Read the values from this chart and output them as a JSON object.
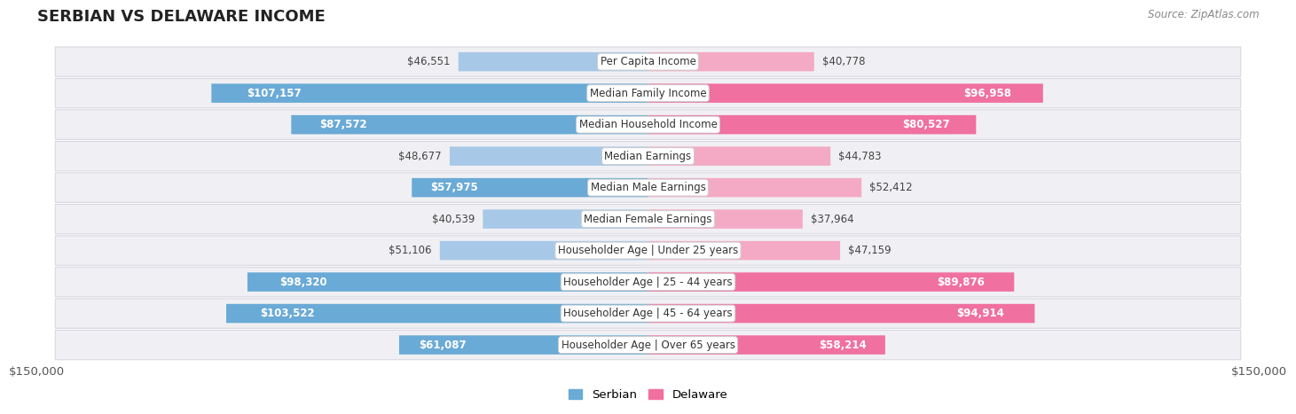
{
  "title": "SERBIAN VS DELAWARE INCOME",
  "source": "Source: ZipAtlas.com",
  "categories": [
    "Per Capita Income",
    "Median Family Income",
    "Median Household Income",
    "Median Earnings",
    "Median Male Earnings",
    "Median Female Earnings",
    "Householder Age | Under 25 years",
    "Householder Age | 25 - 44 years",
    "Householder Age | 45 - 64 years",
    "Householder Age | Over 65 years"
  ],
  "serbian_values": [
    46551,
    107157,
    87572,
    48677,
    57975,
    40539,
    51106,
    98320,
    103522,
    61087
  ],
  "delaware_values": [
    40778,
    96958,
    80527,
    44783,
    52412,
    37964,
    47159,
    89876,
    94914,
    58214
  ],
  "serbian_color_large": "#6aaad6",
  "serbian_color_small": "#a8c8e8",
  "delaware_color_large": "#f070a0",
  "delaware_color_small": "#f4aac4",
  "max_value": 150000,
  "x_tick_labels": [
    "$150,000",
    "$150,000"
  ],
  "title_fontsize": 13,
  "label_fontsize": 8.5,
  "category_fontsize": 8.5,
  "source_fontsize": 8.5,
  "inside_label_threshold": 55000,
  "legend_serbian_color": "#6aaad6",
  "legend_delaware_color": "#f070a0",
  "row_bg": "#f0f0f4",
  "row_border": "#d8d8e0"
}
